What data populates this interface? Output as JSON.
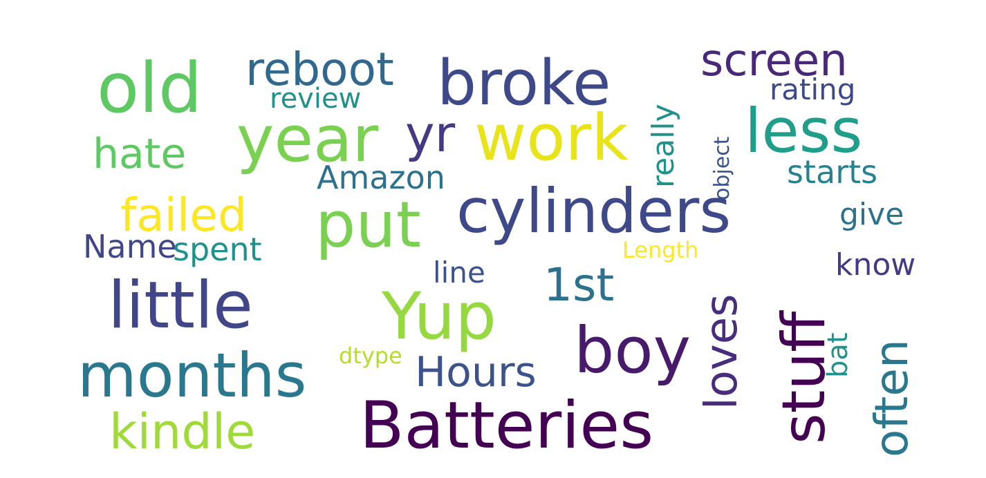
{
  "words": [
    {
      "text": "old",
      "color": "#5ec962"
    },
    {
      "text": "reboot",
      "color": "#31688e"
    },
    {
      "text": "broke",
      "color": "#3e4989"
    },
    {
      "text": "screen",
      "color": "#482878"
    },
    {
      "text": "rating",
      "color": "#3e4989"
    },
    {
      "text": "review",
      "color": "#21918c"
    },
    {
      "text": "year",
      "color": "#7ad151"
    },
    {
      "text": "yr",
      "color": "#443983"
    },
    {
      "text": "work",
      "color": "#e8e419"
    },
    {
      "text": "less",
      "color": "#1f9e89"
    },
    {
      "text": "really",
      "color": "#21918c",
      "orientation": "vertical"
    },
    {
      "text": "hate",
      "color": "#5ec962"
    },
    {
      "text": "object",
      "color": "#3b528b",
      "orientation": "vertical"
    },
    {
      "text": "Amazon",
      "color": "#2c728e"
    },
    {
      "text": "starts",
      "color": "#26828e"
    },
    {
      "text": "failed",
      "color": "#fde725"
    },
    {
      "text": "put",
      "color": "#7ad151"
    },
    {
      "text": "cylinders",
      "color": "#3e4989"
    },
    {
      "text": "give",
      "color": "#2c728e"
    },
    {
      "text": "Name",
      "color": "#404688"
    },
    {
      "text": "spent",
      "color": "#21918c"
    },
    {
      "text": "Length",
      "color": "#fde725"
    },
    {
      "text": "line",
      "color": "#3b528b"
    },
    {
      "text": "know",
      "color": "#443983"
    },
    {
      "text": "loves",
      "color": "#472d7b",
      "orientation": "vertical"
    },
    {
      "text": "stuff",
      "color": "#440154",
      "orientation": "vertical"
    },
    {
      "text": "1st",
      "color": "#2c728e"
    },
    {
      "text": "little",
      "color": "#404688"
    },
    {
      "text": "Yup",
      "color": "#95d840"
    },
    {
      "text": "boy",
      "color": "#481a6c"
    },
    {
      "text": "often",
      "color": "#2a788e",
      "orientation": "vertical"
    },
    {
      "text": "bat",
      "color": "#21918c",
      "orientation": "vertical"
    },
    {
      "text": "months",
      "color": "#2a788e"
    },
    {
      "text": "dtype",
      "color": "#b5de2b"
    },
    {
      "text": "Hours",
      "color": "#3b528b"
    },
    {
      "text": "kindle",
      "color": "#a0da39"
    },
    {
      "text": "Batteries",
      "color": "#440154"
    }
  ]
}
